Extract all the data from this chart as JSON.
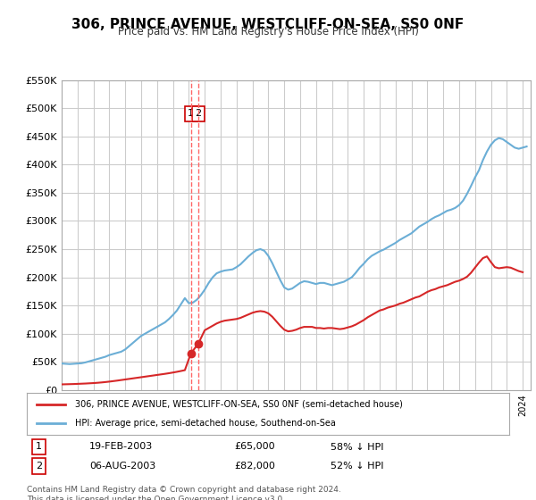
{
  "title": "306, PRINCE AVENUE, WESTCLIFF-ON-SEA, SS0 0NF",
  "subtitle": "Price paid vs. HM Land Registry's House Price Index (HPI)",
  "ylabel_max": 550000,
  "yticks": [
    0,
    50000,
    100000,
    150000,
    200000,
    250000,
    300000,
    350000,
    400000,
    450000,
    500000,
    550000
  ],
  "ytick_labels": [
    "£0",
    "£50K",
    "£100K",
    "£150K",
    "£200K",
    "£250K",
    "£300K",
    "£350K",
    "£400K",
    "£450K",
    "£500K",
    "£550K"
  ],
  "xmin": 1995.0,
  "xmax": 2024.5,
  "hpi_color": "#6baed6",
  "price_color": "#d62728",
  "dashed_color": "#ff6666",
  "marker_box_color": "#cc0000",
  "legend_label_red": "306, PRINCE AVENUE, WESTCLIFF-ON-SEA, SS0 0NF (semi-detached house)",
  "legend_label_blue": "HPI: Average price, semi-detached house, Southend-on-Sea",
  "sale1_date": "19-FEB-2003",
  "sale1_price": 65000,
  "sale1_pct": "58% ↓ HPI",
  "sale1_year": 2003.13,
  "sale2_date": "06-AUG-2003",
  "sale2_price": 82000,
  "sale2_pct": "52% ↓ HPI",
  "sale2_year": 2003.59,
  "footer": "Contains HM Land Registry data © Crown copyright and database right 2024.\nThis data is licensed under the Open Government Licence v3.0.",
  "background_color": "#ffffff",
  "grid_color": "#cccccc",
  "hpi_data_x": [
    1995.0,
    1995.25,
    1995.5,
    1995.75,
    1996.0,
    1996.25,
    1996.5,
    1996.75,
    1997.0,
    1997.25,
    1997.5,
    1997.75,
    1998.0,
    1998.25,
    1998.5,
    1998.75,
    1999.0,
    1999.25,
    1999.5,
    1999.75,
    2000.0,
    2000.25,
    2000.5,
    2000.75,
    2001.0,
    2001.25,
    2001.5,
    2001.75,
    2002.0,
    2002.25,
    2002.5,
    2002.75,
    2003.0,
    2003.25,
    2003.5,
    2003.75,
    2004.0,
    2004.25,
    2004.5,
    2004.75,
    2005.0,
    2005.25,
    2005.5,
    2005.75,
    2006.0,
    2006.25,
    2006.5,
    2006.75,
    2007.0,
    2007.25,
    2007.5,
    2007.75,
    2008.0,
    2008.25,
    2008.5,
    2008.75,
    2009.0,
    2009.25,
    2009.5,
    2009.75,
    2010.0,
    2010.25,
    2010.5,
    2010.75,
    2011.0,
    2011.25,
    2011.5,
    2011.75,
    2012.0,
    2012.25,
    2012.5,
    2012.75,
    2013.0,
    2013.25,
    2013.5,
    2013.75,
    2014.0,
    2014.25,
    2014.5,
    2014.75,
    2015.0,
    2015.25,
    2015.5,
    2015.75,
    2016.0,
    2016.25,
    2016.5,
    2016.75,
    2017.0,
    2017.25,
    2017.5,
    2017.75,
    2018.0,
    2018.25,
    2018.5,
    2018.75,
    2019.0,
    2019.25,
    2019.5,
    2019.75,
    2020.0,
    2020.25,
    2020.5,
    2020.75,
    2021.0,
    2021.25,
    2021.5,
    2021.75,
    2022.0,
    2022.25,
    2022.5,
    2022.75,
    2023.0,
    2023.25,
    2023.5,
    2023.75,
    2024.0,
    2024.25
  ],
  "hpi_data_y": [
    47000,
    46500,
    46000,
    46500,
    47000,
    47500,
    49000,
    51000,
    53000,
    55000,
    57000,
    59000,
    62000,
    64000,
    66000,
    68000,
    72000,
    78000,
    84000,
    90000,
    96000,
    100000,
    104000,
    108000,
    112000,
    116000,
    120000,
    126000,
    133000,
    141000,
    152000,
    163000,
    154000,
    155000,
    160000,
    168000,
    178000,
    190000,
    200000,
    207000,
    210000,
    212000,
    213000,
    214000,
    218000,
    223000,
    230000,
    237000,
    243000,
    248000,
    250000,
    247000,
    238000,
    225000,
    210000,
    195000,
    182000,
    178000,
    180000,
    185000,
    190000,
    193000,
    192000,
    190000,
    188000,
    190000,
    190000,
    188000,
    186000,
    188000,
    190000,
    192000,
    196000,
    200000,
    208000,
    217000,
    224000,
    232000,
    238000,
    242000,
    246000,
    249000,
    253000,
    257000,
    261000,
    266000,
    270000,
    274000,
    278000,
    284000,
    290000,
    294000,
    298000,
    303000,
    307000,
    310000,
    314000,
    318000,
    320000,
    323000,
    328000,
    336000,
    348000,
    362000,
    377000,
    390000,
    408000,
    423000,
    435000,
    443000,
    447000,
    445000,
    440000,
    435000,
    430000,
    428000,
    430000,
    432000
  ],
  "price_data_x": [
    1995.0,
    1995.25,
    1995.5,
    1995.75,
    1996.0,
    1996.25,
    1996.5,
    1996.75,
    1997.0,
    1997.25,
    1997.5,
    1997.75,
    1998.0,
    1998.25,
    1998.5,
    1998.75,
    1999.0,
    1999.25,
    1999.5,
    1999.75,
    2000.0,
    2000.25,
    2000.5,
    2000.75,
    2001.0,
    2001.25,
    2001.5,
    2001.75,
    2002.0,
    2002.25,
    2002.5,
    2002.75,
    2003.13,
    2003.59,
    2004.0,
    2004.25,
    2004.5,
    2004.75,
    2005.0,
    2005.25,
    2005.5,
    2005.75,
    2006.0,
    2006.25,
    2006.5,
    2006.75,
    2007.0,
    2007.25,
    2007.5,
    2007.75,
    2008.0,
    2008.25,
    2008.5,
    2008.75,
    2009.0,
    2009.25,
    2009.5,
    2009.75,
    2010.0,
    2010.25,
    2010.5,
    2010.75,
    2011.0,
    2011.25,
    2011.5,
    2011.75,
    2012.0,
    2012.25,
    2012.5,
    2012.75,
    2013.0,
    2013.25,
    2013.5,
    2013.75,
    2014.0,
    2014.25,
    2014.5,
    2014.75,
    2015.0,
    2015.25,
    2015.5,
    2015.75,
    2016.0,
    2016.25,
    2016.5,
    2016.75,
    2017.0,
    2017.25,
    2017.5,
    2017.75,
    2018.0,
    2018.25,
    2018.5,
    2018.75,
    2019.0,
    2019.25,
    2019.5,
    2019.75,
    2020.0,
    2020.25,
    2020.5,
    2020.75,
    2021.0,
    2021.25,
    2021.5,
    2021.75,
    2022.0,
    2022.25,
    2022.5,
    2022.75,
    2023.0,
    2023.25,
    2023.5,
    2023.75,
    2024.0
  ],
  "price_data_y": [
    10000,
    10200,
    10400,
    10600,
    10900,
    11200,
    11500,
    11900,
    12300,
    12800,
    13400,
    14100,
    14900,
    15800,
    16700,
    17700,
    18700,
    19700,
    20700,
    21700,
    22700,
    23700,
    24700,
    25700,
    26700,
    27700,
    28700,
    29800,
    31000,
    32300,
    33700,
    35200,
    65000,
    82000,
    106000,
    110000,
    114000,
    118000,
    121000,
    123000,
    124000,
    125000,
    126000,
    128000,
    131000,
    134000,
    137000,
    139000,
    140000,
    139000,
    136000,
    130000,
    122000,
    114000,
    107000,
    104000,
    105000,
    107000,
    110000,
    112000,
    112000,
    112000,
    110000,
    110000,
    109000,
    110000,
    110000,
    109000,
    108000,
    109000,
    111000,
    113000,
    116000,
    120000,
    124000,
    129000,
    133000,
    137000,
    141000,
    143000,
    146000,
    148000,
    150000,
    153000,
    155000,
    158000,
    161000,
    164000,
    166000,
    170000,
    174000,
    177000,
    179000,
    182000,
    184000,
    186000,
    189000,
    192000,
    194000,
    197000,
    201000,
    208000,
    217000,
    226000,
    234000,
    237000,
    227000,
    218000,
    216000,
    217000,
    218000,
    217000,
    214000,
    211000,
    209000
  ]
}
